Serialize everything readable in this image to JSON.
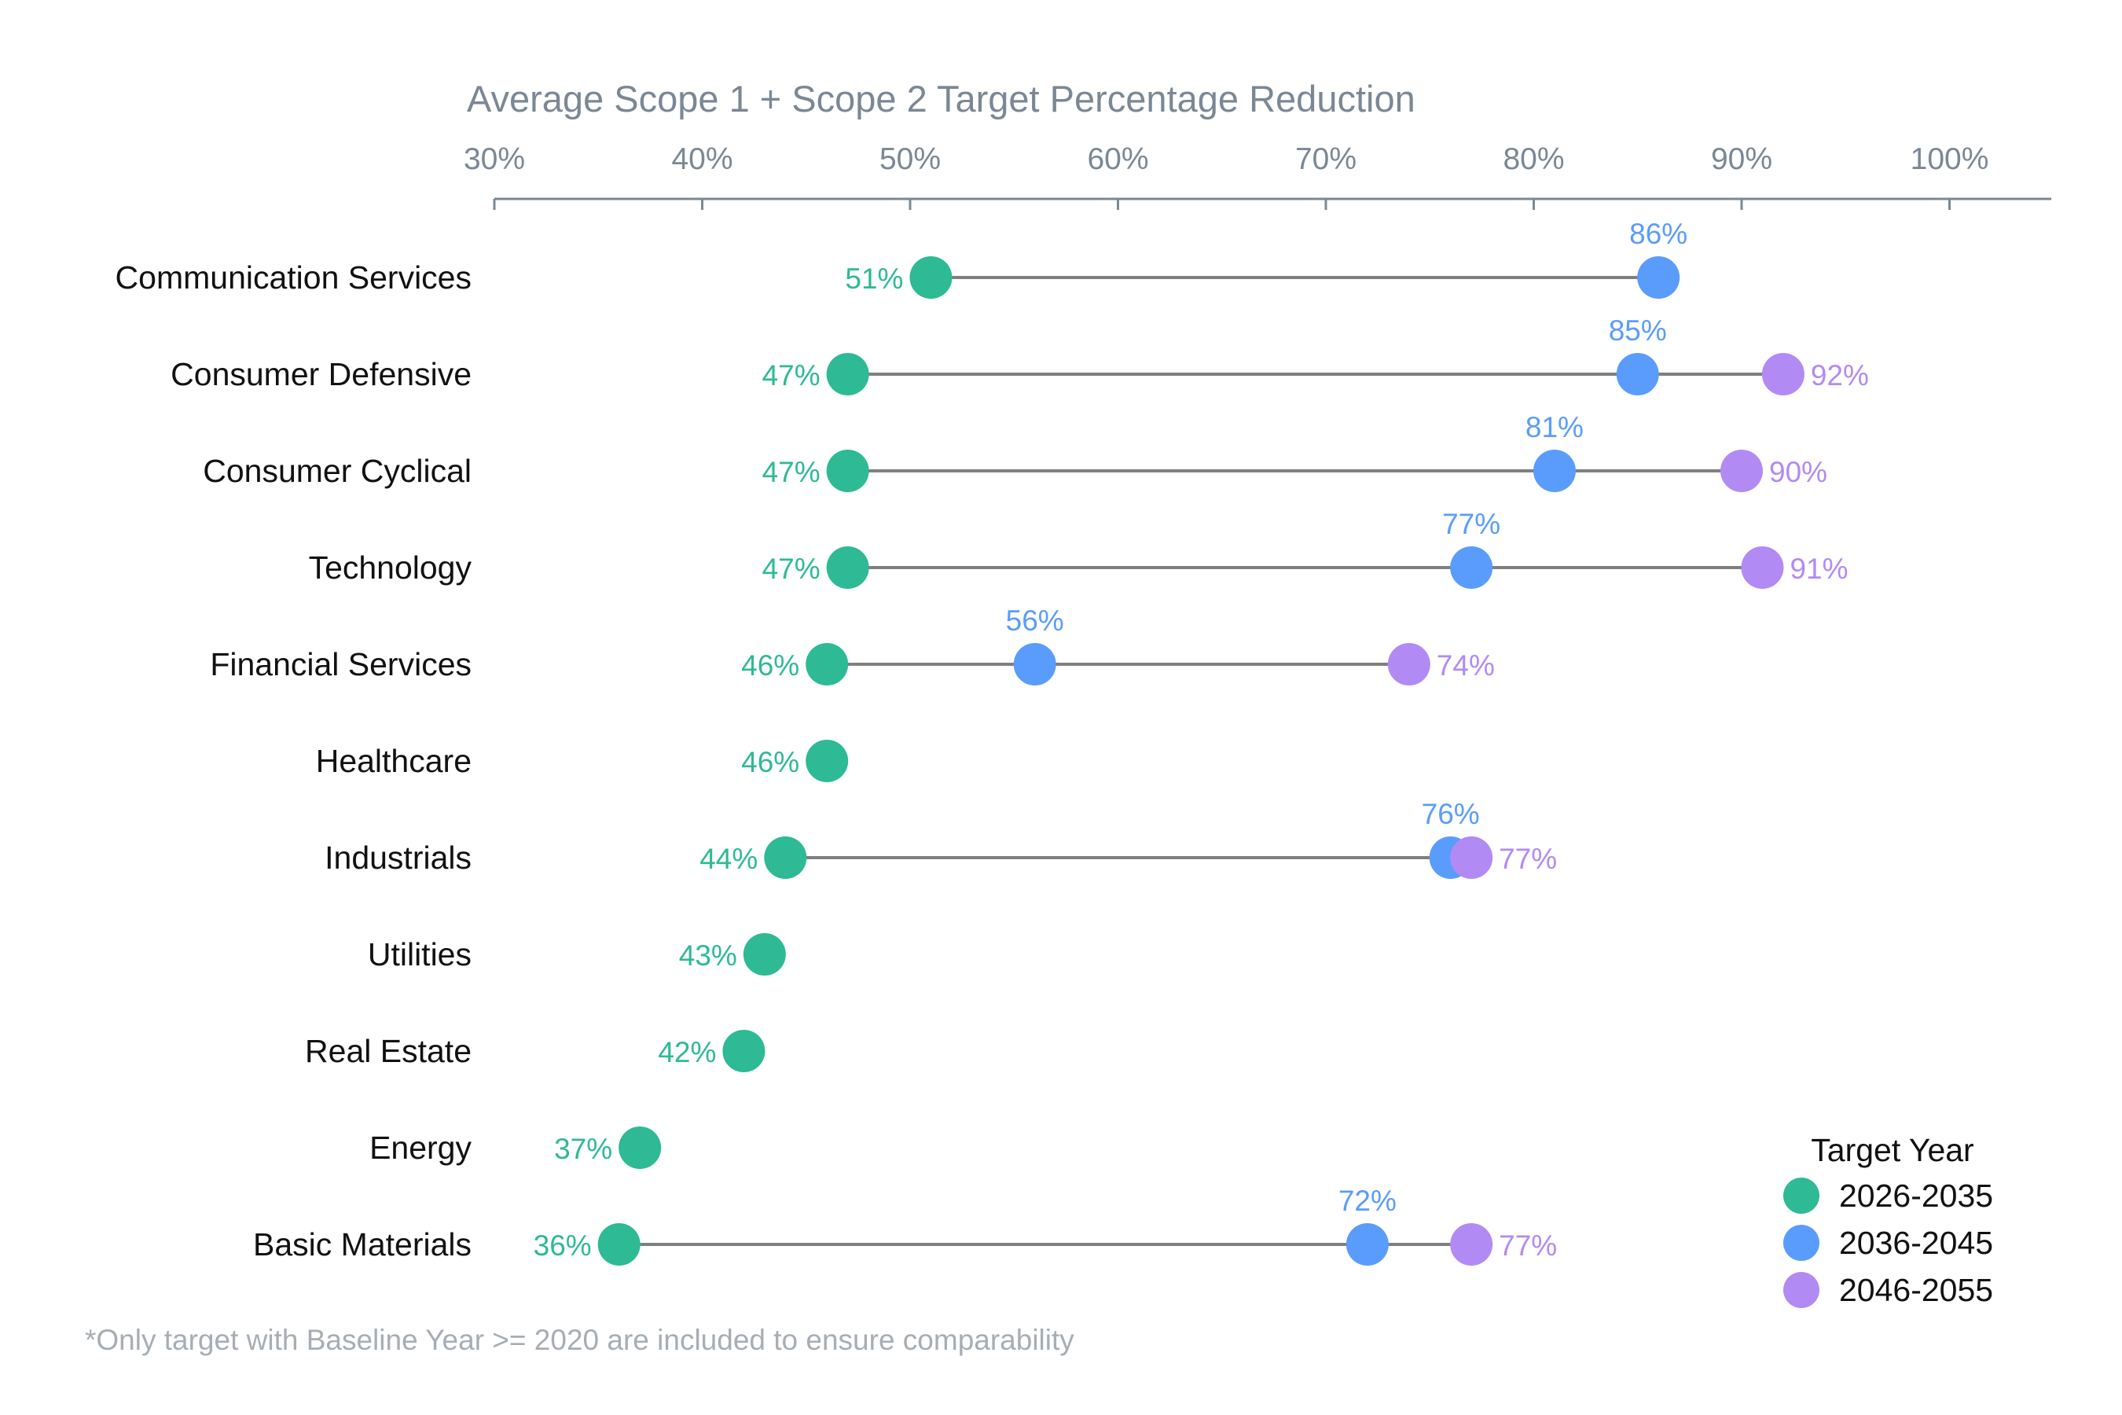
{
  "chart_data": {
    "type": "dumbbell",
    "title": "Average Scope 1 + Scope 2 Target Percentage Reduction",
    "xlim": [
      30,
      105
    ],
    "x_ticks": [
      30,
      40,
      50,
      60,
      70,
      80,
      90,
      100
    ],
    "x_tick_labels": [
      "30%",
      "40%",
      "50%",
      "60%",
      "70%",
      "80%",
      "90%",
      "100%"
    ],
    "x_axis_position": "top",
    "grid": false,
    "legend": {
      "title": "Target Year",
      "placement": "bottom-right"
    },
    "series": [
      {
        "name": "2026-2035",
        "color": "#2dba94"
      },
      {
        "name": "2036-2045",
        "color": "#5a9cfb"
      },
      {
        "name": "2046-2055",
        "color": "#b28af4"
      }
    ],
    "categories": [
      "Communication Services",
      "Consumer Defensive",
      "Consumer Cyclical",
      "Technology",
      "Financial Services",
      "Healthcare",
      "Industrials",
      "Utilities",
      "Real Estate",
      "Energy",
      "Basic Materials"
    ],
    "rows": [
      {
        "category": "Communication Services",
        "values": [
          51,
          86,
          null
        ],
        "labels": [
          "51%",
          "86%",
          null
        ]
      },
      {
        "category": "Consumer Defensive",
        "values": [
          47,
          85,
          92
        ],
        "labels": [
          "47%",
          "85%",
          "92%"
        ]
      },
      {
        "category": "Consumer Cyclical",
        "values": [
          47,
          81,
          90
        ],
        "labels": [
          "47%",
          "81%",
          "90%"
        ]
      },
      {
        "category": "Technology",
        "values": [
          47,
          77,
          91
        ],
        "labels": [
          "47%",
          "77%",
          "91%"
        ]
      },
      {
        "category": "Financial Services",
        "values": [
          46,
          56,
          74
        ],
        "labels": [
          "46%",
          "56%",
          "74%"
        ]
      },
      {
        "category": "Healthcare",
        "values": [
          46,
          null,
          null
        ],
        "labels": [
          "46%",
          null,
          null
        ]
      },
      {
        "category": "Industrials",
        "values": [
          44,
          76,
          77
        ],
        "labels": [
          "44%",
          "76%",
          "77%"
        ]
      },
      {
        "category": "Utilities",
        "values": [
          43,
          null,
          null
        ],
        "labels": [
          "43%",
          null,
          null
        ]
      },
      {
        "category": "Real Estate",
        "values": [
          42,
          null,
          null
        ],
        "labels": [
          "42%",
          null,
          null
        ]
      },
      {
        "category": "Energy",
        "values": [
          37,
          null,
          null
        ],
        "labels": [
          "37%",
          null,
          null
        ]
      },
      {
        "category": "Basic Materials",
        "values": [
          36,
          72,
          77
        ],
        "labels": [
          "36%",
          "72%",
          "77%"
        ]
      }
    ]
  },
  "footnote": "*Only target with Baseline Year >= 2020 are included to ensure comparability"
}
